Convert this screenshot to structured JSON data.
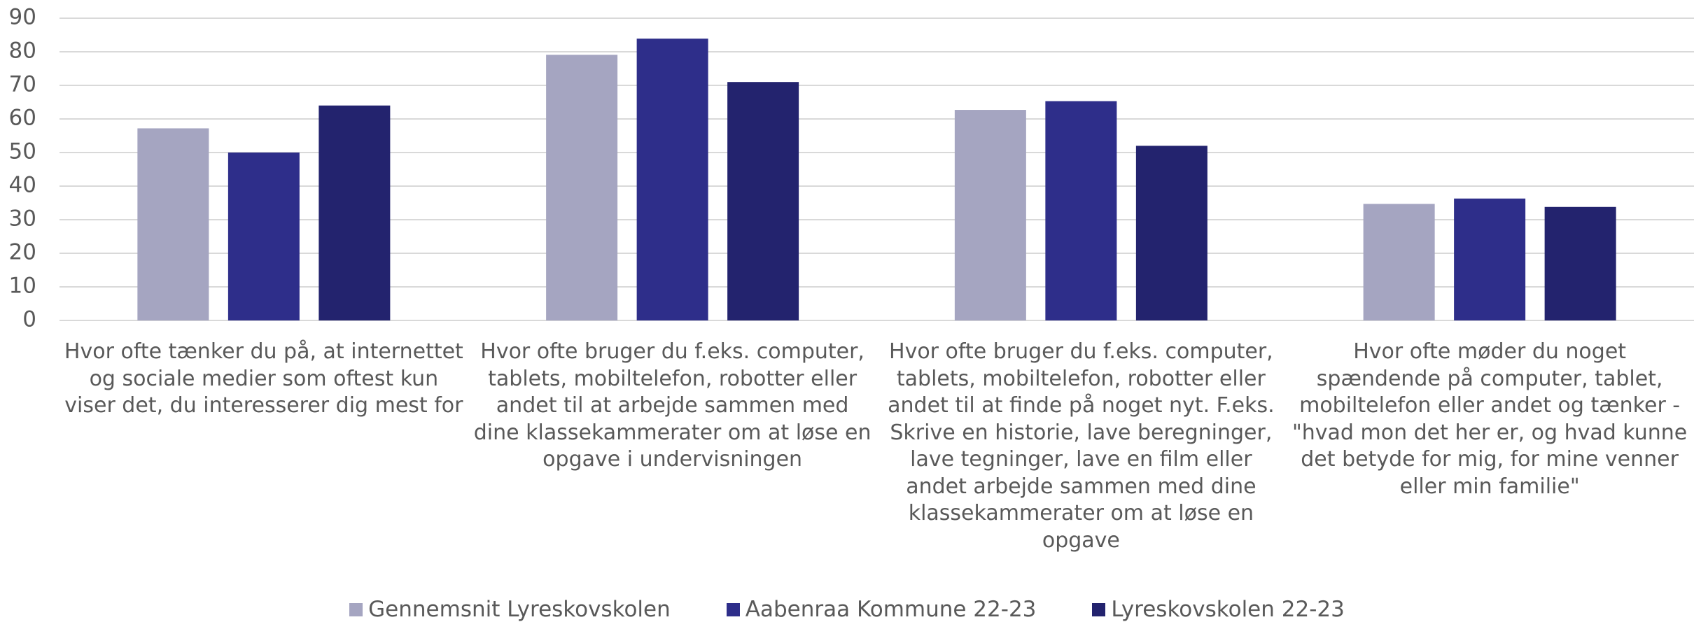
{
  "chart_data": {
    "type": "bar",
    "categories": [
      "Hvor ofte tænker du på, at internettet og sociale medier som oftest kun viser det, du interesserer dig mest for",
      "Hvor ofte bruger du f.eks. computer, tablets, mobiltelefon, robotter eller andet til at arbejde sammen med dine klassekammerater om at løse en opgave i undervisningen",
      "Hvor ofte bruger du f.eks. computer, tablets, mobiltelefon, robotter eller andet til at finde på noget nyt. F.eks. Skrive en historie, lave beregninger, lave tegninger, lave en film eller andet arbejde sammen med dine klassekammerater om at løse en opgave",
      "Hvor ofte møder du noget spændende på computer, tablet, mobiltelefon eller andet og tænker - \"hvad mon det her er, og hvad kunne det betyde for mig, for mine venner eller min familie\""
    ],
    "series": [
      {
        "name": "Gennemsnit Lyreskovskolen",
        "color": "#a5a5c1",
        "values": [
          57.2,
          79.1,
          62.7,
          34.7
        ]
      },
      {
        "name": "Aabenraa Kommune 22-23",
        "color": "#2e2e8a",
        "values": [
          50,
          83.9,
          65.3,
          36.3
        ]
      },
      {
        "name": "Lyreskovskolen 22-23",
        "color": "#23236e",
        "values": [
          64,
          71,
          52,
          33.8
        ]
      }
    ],
    "ylim": [
      0,
      90
    ],
    "yticks": [
      0,
      10,
      20,
      30,
      40,
      50,
      60,
      70,
      80,
      90
    ],
    "grid": true,
    "legend": "bottom"
  }
}
